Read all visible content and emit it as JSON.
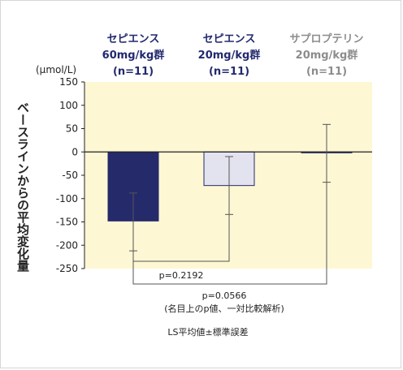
{
  "chart_data": {
    "type": "bar",
    "unit": "(μmol/L)",
    "ylabel": "ベースラインからの平均変化量",
    "ylim": [
      -250,
      150
    ],
    "yticks": [
      150,
      100,
      50,
      0,
      -50,
      -100,
      -150,
      -200,
      -250
    ],
    "groups": [
      {
        "line1": "セピエンス",
        "line2": "60mg/kg群",
        "line3": "(n=11)",
        "value": -148,
        "err_low": -212,
        "err_high": -88,
        "color": "#252a6b",
        "label_color": "#22296e"
      },
      {
        "line1": "セピエンス",
        "line2": "20mg/kg群",
        "line3": "(n=11)",
        "value": -72,
        "err_low": -134,
        "err_high": -10,
        "color": "#e2e3ef",
        "label_color": "#22296e"
      },
      {
        "line1": "サプロプテリン",
        "line2": "20mg/kg群",
        "line3": "(n=11)",
        "value": -2,
        "err_low": -65,
        "err_high": 59,
        "color": "#f8f3cf",
        "label_color": "#8c8c8c"
      }
    ],
    "comparisons": [
      {
        "text": "p=0.2192"
      },
      {
        "text": "p=0.0566",
        "subtext": "(名目上のp値、一対比較解析)"
      }
    ],
    "footnote": "LS平均値±標準誤差",
    "plot_bg": "#fdf7d4"
  }
}
